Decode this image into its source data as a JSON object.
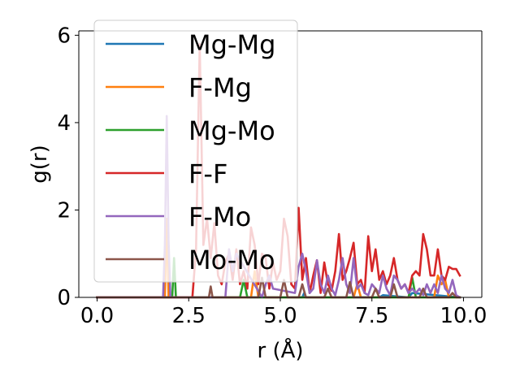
{
  "chart_data": {
    "type": "line",
    "title": "",
    "xlabel": "r (Å)",
    "ylabel": "g(r)",
    "xlim": [
      -0.5,
      10.5
    ],
    "ylim": [
      0,
      6.1
    ],
    "xticks": [
      0.0,
      2.5,
      5.0,
      7.5,
      10.0
    ],
    "xtick_labels": [
      "0.0",
      "2.5",
      "5.0",
      "7.5",
      "10.0"
    ],
    "yticks": [
      0,
      2,
      4,
      6
    ],
    "ytick_labels": [
      "0",
      "2",
      "4",
      "6"
    ],
    "grid": false,
    "legend_position": "top-left",
    "series": [
      {
        "name": "Mg-Mg",
        "color": "#1f77b4",
        "x": [
          0,
          5.6,
          5.65,
          5.7,
          7.7,
          7.8,
          8.5,
          8.6,
          9.9
        ],
        "y": [
          0,
          0,
          0.1,
          0,
          0,
          0.05,
          0,
          0.1,
          0
        ]
      },
      {
        "name": "F-Mg",
        "color": "#ff7f0e",
        "x": [
          0,
          1.85,
          1.9,
          1.95,
          4.2,
          4.3,
          4.4,
          7.0,
          7.1,
          7.2,
          9.2,
          9.3,
          9.4,
          9.5,
          9.6,
          9.9
        ],
        "y": [
          0,
          0,
          1.8,
          0,
          0,
          0.6,
          0,
          0,
          0.3,
          0,
          0,
          0.5,
          0.3,
          0.4,
          0,
          0
        ]
      },
      {
        "name": "Mg-Mo",
        "color": "#2ca02c",
        "x": [
          0,
          2.05,
          2.1,
          2.15,
          3.9,
          4.0,
          4.1,
          8.5,
          8.6,
          8.7,
          9.9
        ],
        "y": [
          0,
          0,
          0.9,
          0,
          0,
          0.4,
          0,
          0,
          0.45,
          0,
          0
        ]
      },
      {
        "name": "F-F",
        "color": "#d62728",
        "x": [
          0,
          2.6,
          2.7,
          2.8,
          2.9,
          3.0,
          3.1,
          3.2,
          3.3,
          3.4,
          3.5,
          3.6,
          3.7,
          3.8,
          3.9,
          4.0,
          4.1,
          4.2,
          4.3,
          4.4,
          4.5,
          4.6,
          4.7,
          4.8,
          4.9,
          5.0,
          5.1,
          5.2,
          5.3,
          5.4,
          5.5,
          5.6,
          5.7,
          5.8,
          5.9,
          6.0,
          6.1,
          6.2,
          6.3,
          6.4,
          6.5,
          6.6,
          6.7,
          6.8,
          6.9,
          7.0,
          7.1,
          7.2,
          7.3,
          7.4,
          7.5,
          7.6,
          7.7,
          7.8,
          7.9,
          8.0,
          8.1,
          8.2,
          8.3,
          8.4,
          8.5,
          8.6,
          8.7,
          8.8,
          8.9,
          9.0,
          9.1,
          9.2,
          9.3,
          9.4,
          9.5,
          9.6,
          9.7,
          9.8,
          9.9
        ],
        "y": [
          0,
          0,
          1.1,
          5.8,
          1.2,
          1.8,
          0.9,
          1.7,
          0.5,
          0.3,
          0.8,
          1.0,
          0.4,
          1.1,
          0.3,
          0.6,
          0.2,
          1.6,
          1.2,
          0.3,
          1.0,
          0.9,
          0.2,
          0.8,
          0.4,
          0.6,
          1.8,
          1.4,
          0.3,
          0.2,
          2.05,
          0.4,
          0.9,
          0.1,
          0.5,
          0.85,
          0.1,
          0.8,
          0.3,
          0.15,
          0.6,
          1.45,
          0.4,
          0.6,
          0.9,
          1.25,
          0.3,
          0.4,
          0.1,
          1.4,
          0.6,
          1.1,
          0.4,
          0.6,
          0.3,
          0.5,
          0.9,
          0.4,
          0.2,
          0.3,
          0.1,
          0.5,
          0.6,
          0.5,
          1.45,
          1.1,
          0.5,
          0.5,
          1.1,
          0.5,
          0.4,
          0.7,
          0.65,
          0.65,
          0.5
        ]
      },
      {
        "name": "F-Mo",
        "color": "#9467bd",
        "x": [
          0,
          1.8,
          1.85,
          1.9,
          1.95,
          2.0,
          3.5,
          3.6,
          3.7,
          3.8,
          4.5,
          4.6,
          4.7,
          4.8,
          5.4,
          5.5,
          5.6,
          5.7,
          5.8,
          5.9,
          6.0,
          6.1,
          6.2,
          6.3,
          6.4,
          6.5,
          6.6,
          6.7,
          6.8,
          6.9,
          7.0,
          7.1,
          7.2,
          7.3,
          7.4,
          7.5,
          7.6,
          7.7,
          7.8,
          7.9,
          8.0,
          8.1,
          8.2,
          8.3,
          8.4,
          8.5,
          8.6,
          8.7,
          8.8,
          8.9,
          9.0,
          9.1,
          9.2,
          9.3,
          9.4,
          9.5,
          9.6,
          9.7,
          9.8,
          9.9
        ],
        "y": [
          0,
          0,
          1.2,
          4.15,
          1.3,
          0,
          0,
          1.1,
          0.6,
          1.0,
          0,
          0.3,
          0.5,
          0.2,
          0.1,
          0.7,
          1.0,
          0.6,
          0.1,
          0.2,
          0.85,
          0.3,
          0.1,
          0.5,
          0.2,
          0.05,
          0.4,
          0.9,
          0.3,
          0.1,
          0.9,
          0.2,
          0.3,
          0.1,
          0.05,
          0.3,
          0.2,
          0.1,
          0.5,
          0.2,
          0.05,
          0.5,
          0.4,
          0.2,
          0.3,
          0.1,
          0.2,
          0.1,
          0.2,
          0.05,
          0.3,
          0.1,
          0.3,
          0.1,
          0.5,
          0.2,
          0.1,
          0.4,
          0.05,
          0
        ]
      },
      {
        "name": "Mo-Mo",
        "color": "#8c564b",
        "x": [
          0,
          3.05,
          3.1,
          3.15,
          4.4,
          4.5,
          4.6,
          5.0,
          5.1,
          5.2,
          5.5,
          5.6,
          5.7,
          6.2,
          6.3,
          6.4,
          6.8,
          6.9,
          7.0,
          7.5,
          7.6,
          7.7,
          8.0,
          8.1,
          8.2,
          8.8,
          8.9,
          9.0,
          9.6,
          9.7,
          9.8,
          9.9
        ],
        "y": [
          0,
          0,
          0.25,
          0,
          0,
          0.45,
          0,
          0,
          0.4,
          0,
          0,
          0.3,
          0,
          0,
          0.2,
          0,
          0,
          0.35,
          0,
          0,
          0.2,
          0,
          0,
          0.3,
          0,
          0,
          0.2,
          0,
          0,
          0.1,
          0,
          0
        ]
      }
    ]
  }
}
